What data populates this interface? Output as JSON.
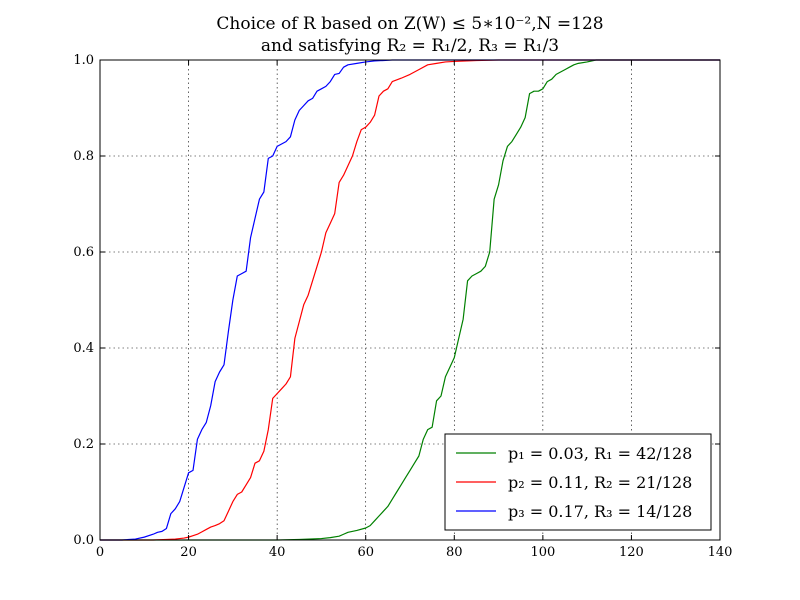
{
  "chart_data": {
    "type": "line",
    "title_line1": "Choice of R based on Z(W) ≤ 5∗10⁻²,N =128",
    "title_line2": "and satisfying R₂ = R₁/2, R₃ = R₁/3",
    "xlabel": "",
    "ylabel": "",
    "xlim": [
      0,
      140
    ],
    "ylim": [
      0,
      1
    ],
    "xticks": [
      0,
      20,
      40,
      60,
      80,
      100,
      120,
      140
    ],
    "yticks": [
      0.0,
      0.2,
      0.4,
      0.6,
      0.8,
      1.0
    ],
    "xtick_labels": [
      "0",
      "20",
      "40",
      "60",
      "80",
      "100",
      "120",
      "140"
    ],
    "ytick_labels": [
      "0.0",
      "0.2",
      "0.4",
      "0.6",
      "0.8",
      "1.0"
    ],
    "grid": true,
    "legend_position": "bottom-right",
    "series": [
      {
        "name": "p₁ = 0.03, R₁ = 42/128",
        "color": "#008000",
        "x": [
          0,
          40,
          45,
          50,
          52,
          54,
          55,
          56,
          58,
          60,
          61,
          62,
          63,
          64,
          65,
          66,
          67,
          68,
          69,
          70,
          71,
          72,
          73,
          74,
          75,
          76,
          77,
          78,
          79,
          80,
          81,
          82,
          83,
          84,
          85,
          86,
          87,
          88,
          89,
          90,
          91,
          92,
          93,
          94,
          95,
          96,
          97,
          98,
          99,
          100,
          101,
          102,
          103,
          104,
          105,
          106,
          107,
          108,
          110,
          112,
          115,
          140
        ],
        "y": [
          0,
          0,
          0.001,
          0.003,
          0.005,
          0.008,
          0.012,
          0.016,
          0.02,
          0.025,
          0.03,
          0.04,
          0.05,
          0.06,
          0.07,
          0.085,
          0.1,
          0.115,
          0.13,
          0.145,
          0.16,
          0.175,
          0.21,
          0.23,
          0.235,
          0.29,
          0.3,
          0.34,
          0.36,
          0.38,
          0.42,
          0.46,
          0.54,
          0.55,
          0.555,
          0.56,
          0.57,
          0.6,
          0.71,
          0.74,
          0.79,
          0.82,
          0.83,
          0.845,
          0.86,
          0.88,
          0.93,
          0.935,
          0.935,
          0.94,
          0.955,
          0.96,
          0.97,
          0.975,
          0.98,
          0.985,
          0.99,
          0.993,
          0.996,
          1.0,
          1.0,
          1.0
        ]
      },
      {
        "name": "p₂ = 0.11, R₂ = 21/128",
        "color": "#ff0000",
        "x": [
          0,
          12,
          15,
          17,
          19,
          20,
          21,
          22,
          23,
          24,
          25,
          26,
          27,
          28,
          29,
          30,
          31,
          32,
          33,
          34,
          35,
          36,
          37,
          38,
          39,
          40,
          41,
          42,
          43,
          44,
          45,
          46,
          47,
          48,
          49,
          50,
          51,
          52,
          53,
          54,
          55,
          56,
          57,
          58,
          59,
          60,
          61,
          62,
          63,
          64,
          65,
          66,
          68,
          70,
          72,
          74,
          76,
          78,
          80,
          85,
          90,
          140
        ],
        "y": [
          0,
          0,
          0.001,
          0.002,
          0.004,
          0.006,
          0.009,
          0.012,
          0.017,
          0.022,
          0.027,
          0.03,
          0.034,
          0.04,
          0.06,
          0.08,
          0.095,
          0.1,
          0.115,
          0.13,
          0.16,
          0.165,
          0.185,
          0.23,
          0.295,
          0.305,
          0.315,
          0.325,
          0.34,
          0.42,
          0.455,
          0.49,
          0.51,
          0.54,
          0.57,
          0.6,
          0.64,
          0.66,
          0.68,
          0.745,
          0.76,
          0.78,
          0.8,
          0.83,
          0.855,
          0.86,
          0.87,
          0.885,
          0.925,
          0.935,
          0.94,
          0.955,
          0.962,
          0.97,
          0.98,
          0.99,
          0.993,
          0.996,
          0.997,
          0.999,
          1.0,
          1.0
        ]
      },
      {
        "name": "p₃ = 0.17, R₃ = 14/128",
        "color": "#0000ff",
        "x": [
          0,
          5,
          8,
          10,
          12,
          13,
          14,
          15,
          16,
          17,
          18,
          19,
          20,
          21,
          22,
          23,
          24,
          25,
          26,
          27,
          28,
          29,
          30,
          31,
          32,
          33,
          34,
          35,
          36,
          37,
          38,
          39,
          40,
          41,
          42,
          43,
          44,
          45,
          46,
          47,
          48,
          49,
          50,
          51,
          52,
          53,
          54,
          55,
          56,
          58,
          60,
          62,
          64,
          66,
          68,
          70,
          75,
          80,
          140
        ],
        "y": [
          0,
          0,
          0.002,
          0.006,
          0.012,
          0.016,
          0.018,
          0.024,
          0.055,
          0.065,
          0.08,
          0.11,
          0.14,
          0.145,
          0.21,
          0.23,
          0.245,
          0.28,
          0.33,
          0.35,
          0.365,
          0.435,
          0.5,
          0.55,
          0.555,
          0.56,
          0.63,
          0.67,
          0.71,
          0.725,
          0.795,
          0.8,
          0.82,
          0.825,
          0.83,
          0.84,
          0.875,
          0.895,
          0.905,
          0.915,
          0.92,
          0.935,
          0.94,
          0.945,
          0.955,
          0.97,
          0.972,
          0.985,
          0.99,
          0.993,
          0.996,
          0.998,
          0.999,
          1.0,
          1.0,
          1.0,
          1.0,
          1.0,
          1.0
        ]
      }
    ]
  }
}
